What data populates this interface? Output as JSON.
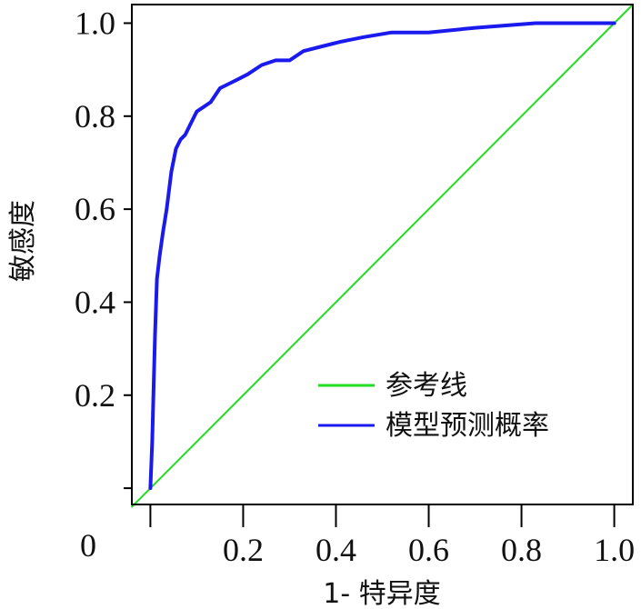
{
  "chart_data": {
    "type": "line",
    "title": "",
    "xlabel": "1- 特异度",
    "ylabel": "敏感度",
    "xlim": [
      -0.04,
      1.04
    ],
    "ylim": [
      -0.035,
      1.04
    ],
    "origin_label": "0",
    "x_ticks": [
      0.2,
      0.4,
      0.6,
      0.8,
      1.0
    ],
    "x_tick_labels": [
      "0.2",
      "0.4",
      "0.6",
      "0.8",
      "1.0"
    ],
    "y_ticks": [
      0.2,
      0.4,
      0.6,
      0.8,
      1.0
    ],
    "y_tick_labels": [
      "0.2",
      "0.4",
      "0.6",
      "0.8",
      "1.0"
    ],
    "grid": false,
    "legend_position": "bottom-right",
    "series": [
      {
        "name": "参考线",
        "color": "#22dd22",
        "x": [
          -0.04,
          1.04
        ],
        "y": [
          -0.04,
          1.04
        ]
      },
      {
        "name": "模型预测概率",
        "color": "#1a1aee",
        "x": [
          0.0,
          0.004,
          0.007,
          0.01,
          0.014,
          0.02,
          0.027,
          0.035,
          0.045,
          0.055,
          0.065,
          0.075,
          0.09,
          0.1,
          0.115,
          0.13,
          0.15,
          0.17,
          0.19,
          0.21,
          0.24,
          0.27,
          0.3,
          0.33,
          0.37,
          0.41,
          0.46,
          0.52,
          0.6,
          0.7,
          0.83,
          0.9,
          1.0
        ],
        "y": [
          0.0,
          0.1,
          0.22,
          0.33,
          0.45,
          0.5,
          0.55,
          0.6,
          0.68,
          0.73,
          0.75,
          0.76,
          0.79,
          0.81,
          0.82,
          0.83,
          0.86,
          0.87,
          0.88,
          0.89,
          0.91,
          0.92,
          0.92,
          0.94,
          0.95,
          0.96,
          0.97,
          0.98,
          0.98,
          0.99,
          1.0,
          1.0,
          1.0
        ]
      }
    ]
  }
}
